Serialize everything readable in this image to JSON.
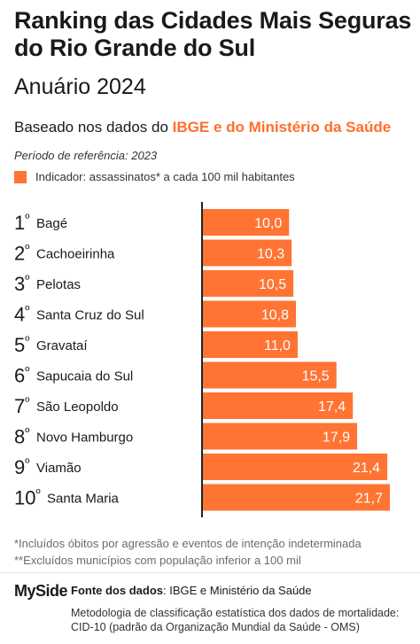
{
  "header": {
    "title": "Ranking das Cidades Mais Seguras do Rio Grande do Sul",
    "subtitle": "Anuário 2024",
    "based_prefix": "Baseado nos dados do ",
    "based_highlight": "IBGE e do Ministério da Saúde",
    "period": "Período de referência: 2023",
    "legend_label": "Indicador: assassinatos* a cada 100 mil habitantes"
  },
  "colors": {
    "accent": "#ff7433",
    "highlight_text": "#ff6f2b"
  },
  "chart_data": {
    "type": "bar",
    "orientation": "horizontal",
    "ranks": [
      "1º",
      "2º",
      "3º",
      "4º",
      "5º",
      "6º",
      "7º",
      "8º",
      "9º",
      "10º"
    ],
    "categories": [
      "Bagé",
      "Cachoeirinha",
      "Pelotas",
      "Santa Cruz do Sul",
      "Gravataí",
      "Sapucaia do Sul",
      "São Leopoldo",
      "Novo Hamburgo",
      "Viamão",
      "Santa Maria"
    ],
    "values": [
      10.0,
      10.3,
      10.5,
      10.8,
      11.0,
      15.5,
      17.4,
      17.9,
      21.4,
      21.7
    ],
    "value_labels": [
      "10,0",
      "10,3",
      "10,5",
      "10,8",
      "11,0",
      "15,5",
      "17,4",
      "17,9",
      "21,4",
      "21,7"
    ],
    "series": [
      {
        "name": "Indicador: assassinatos* a cada 100 mil habitantes",
        "values": [
          10.0,
          10.3,
          10.5,
          10.8,
          11.0,
          15.5,
          17.4,
          17.9,
          21.4,
          21.7
        ]
      }
    ],
    "xlim": [
      0,
      22
    ],
    "grid": false,
    "legend": "top-left"
  },
  "notes": [
    "*Incluídos óbitos por agressão e eventos de intenção indeterminada",
    "**Excluídos municípios com população inferior a 100 mil"
  ],
  "footer": {
    "brand_my": "My",
    "brand_side": "Side",
    "source_label": "Fonte dos dados",
    "source_text": ": IBGE e Ministério da Saúde",
    "methodology": "Metodologia de classificação estatística dos dados de mortalidade: CID-10 (padrão da Organização Mundial da Saúde - OMS)"
  }
}
